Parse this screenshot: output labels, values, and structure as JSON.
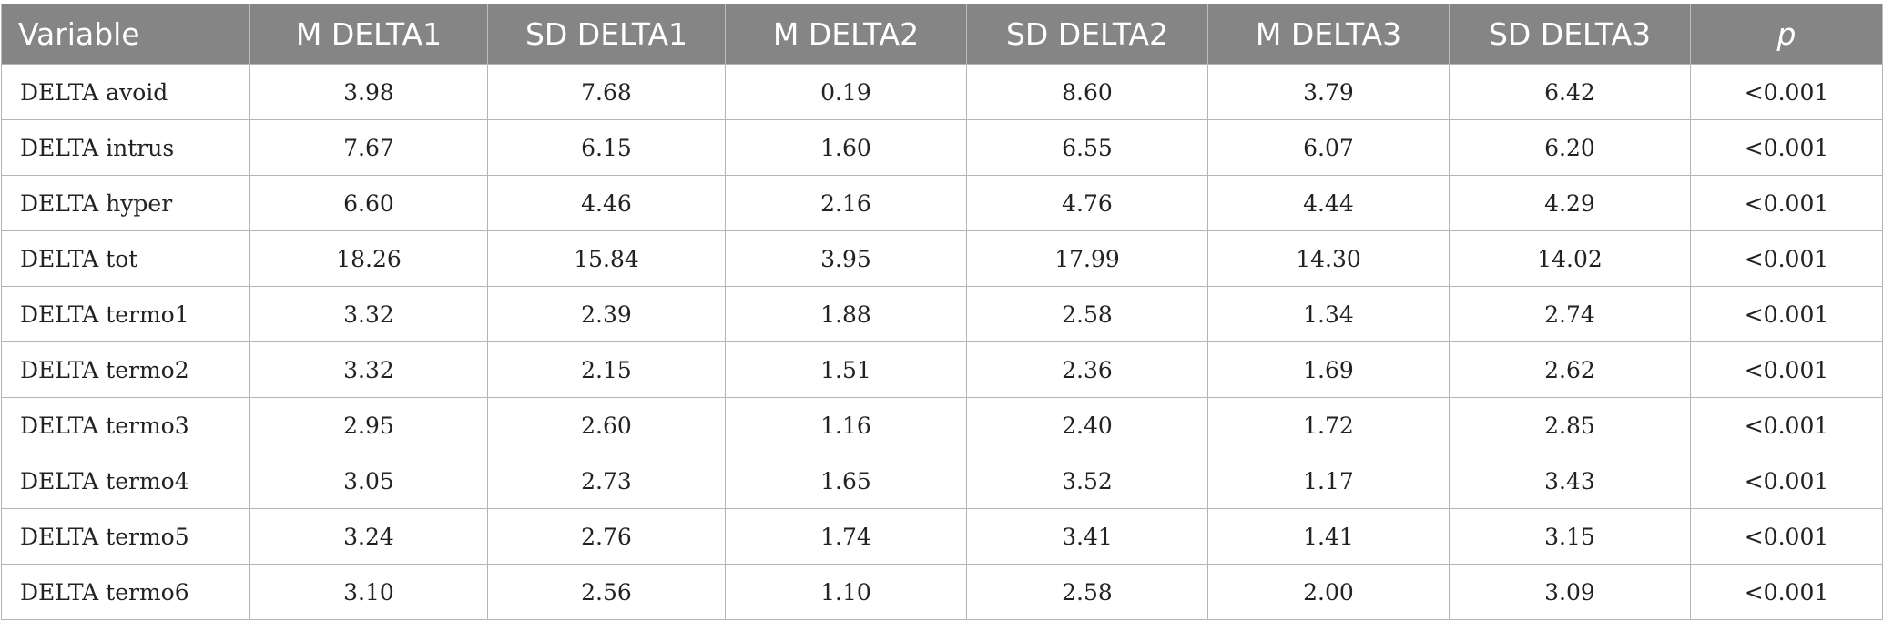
{
  "table": {
    "headers": [
      "Variable",
      "M DELTA1",
      "SD DELTA1",
      "M DELTA2",
      "SD DELTA2",
      "M DELTA3",
      "SD DELTA3",
      "p"
    ],
    "rows": [
      [
        "DELTA avoid",
        "3.98",
        "7.68",
        "0.19",
        "8.60",
        "3.79",
        "6.42",
        "<0.001"
      ],
      [
        "DELTA intrus",
        "7.67",
        "6.15",
        "1.60",
        "6.55",
        "6.07",
        "6.20",
        "<0.001"
      ],
      [
        "DELTA hyper",
        "6.60",
        "4.46",
        "2.16",
        "4.76",
        "4.44",
        "4.29",
        "<0.001"
      ],
      [
        "DELTA tot",
        "18.26",
        "15.84",
        "3.95",
        "17.99",
        "14.30",
        "14.02",
        "<0.001"
      ],
      [
        "DELTA termo1",
        "3.32",
        "2.39",
        "1.88",
        "2.58",
        "1.34",
        "2.74",
        "<0.001"
      ],
      [
        "DELTA termo2",
        "3.32",
        "2.15",
        "1.51",
        "2.36",
        "1.69",
        "2.62",
        "<0.001"
      ],
      [
        "DELTA termo3",
        "2.95",
        "2.60",
        "1.16",
        "2.40",
        "1.72",
        "2.85",
        "<0.001"
      ],
      [
        "DELTA termo4",
        "3.05",
        "2.73",
        "1.65",
        "3.52",
        "1.17",
        "3.43",
        "<0.001"
      ],
      [
        "DELTA termo5",
        "3.24",
        "2.76",
        "1.74",
        "3.41",
        "1.41",
        "3.15",
        "<0.001"
      ],
      [
        "DELTA termo6",
        "3.10",
        "2.56",
        "1.10",
        "2.58",
        "2.00",
        "3.09",
        "<0.001"
      ]
    ]
  },
  "colors": {
    "header_bg": "#858585",
    "header_text": "#ffffff",
    "border": "#b5b5b5"
  }
}
